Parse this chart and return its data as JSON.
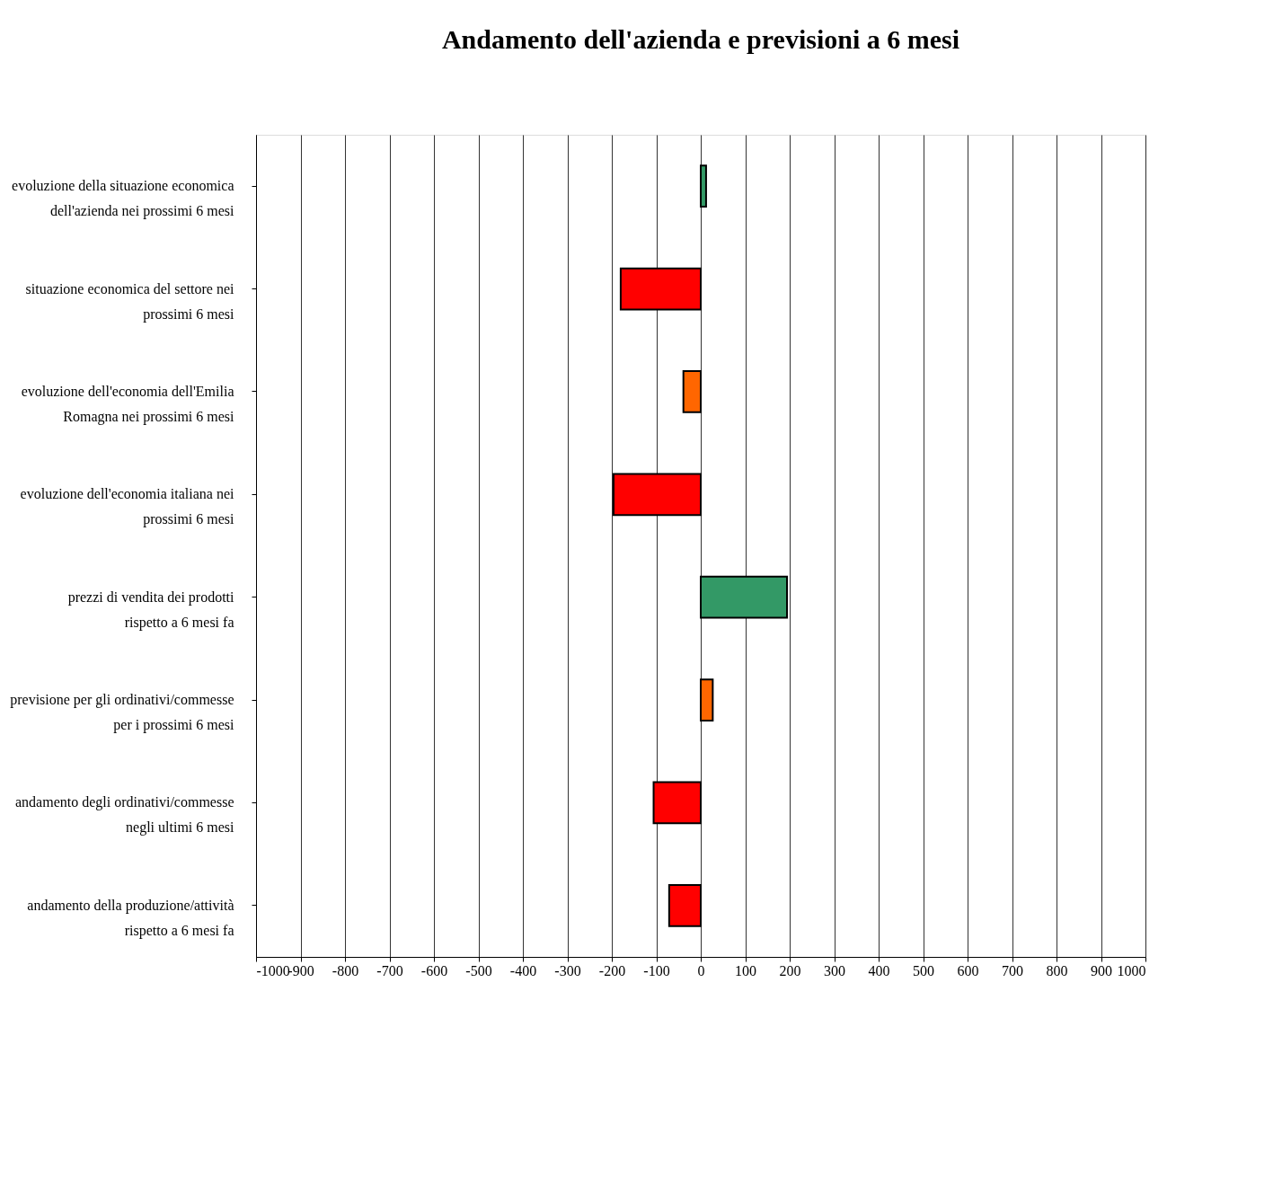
{
  "chart_data": {
    "type": "bar",
    "orientation": "horizontal",
    "title": "Andamento dell'azienda e previsioni a 6 mesi",
    "categories": [
      "evoluzione della situazione economica dell'azienda nei prossimi 6 mesi",
      "situazione economica del settore nei prossimi 6 mesi",
      "evoluzione dell'economia dell'Emilia Romagna nei prossimi 6 mesi",
      "evoluzione dell'economia italiana nei prossimi 6 mesi",
      "prezzi di vendita dei prodotti rispetto a 6 mesi fa",
      "previsione per gli ordinativi/commesse per i prossimi 6 mesi",
      "andamento degli ordinativi/commesse negli ultimi 6 mesi",
      "andamento della produzione/attività rispetto a 6 mesi fa"
    ],
    "values": [
      12,
      -180,
      -39,
      -196,
      194,
      27,
      -106,
      -71
    ],
    "colors": [
      "#339966",
      "#ff0000",
      "#ff6600",
      "#ff0000",
      "#339966",
      "#ff6600",
      "#ff0000",
      "#ff0000"
    ],
    "xlim": [
      -1000,
      1000
    ],
    "xticks": [
      -1000,
      -900,
      -800,
      -700,
      -600,
      -500,
      -400,
      -300,
      -200,
      -100,
      0,
      100,
      200,
      300,
      400,
      500,
      600,
      700,
      800,
      900,
      1000
    ],
    "grid": "x"
  }
}
